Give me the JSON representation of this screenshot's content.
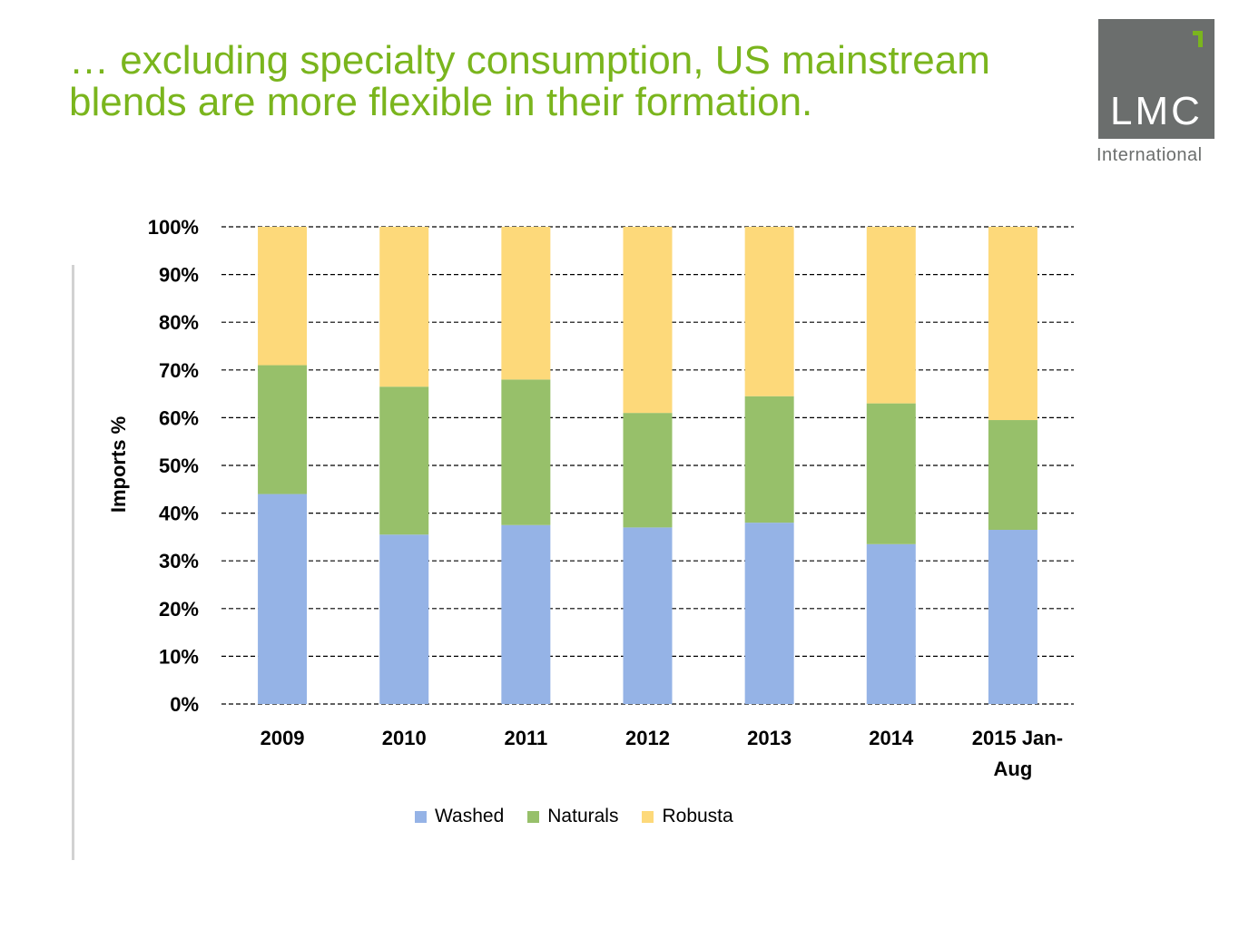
{
  "slide": {
    "title_line1": "… excluding specialty consumption, US mainstream",
    "title_line2": "blends are more flexible in their formation."
  },
  "logo": {
    "text": "LMC",
    "subtext": "International",
    "color": "#6b6e6d",
    "accent": "#7ab51d"
  },
  "chart_data": {
    "type": "bar",
    "stacked": true,
    "categories": [
      "2009",
      "2010",
      "2011",
      "2012",
      "2013",
      "2014",
      "2015 Jan-Aug"
    ],
    "category_lines": [
      [
        "2009"
      ],
      [
        "2010"
      ],
      [
        "2011"
      ],
      [
        "2012"
      ],
      [
        "2013"
      ],
      [
        "2014"
      ],
      [
        "2015 Jan-",
        "Aug"
      ]
    ],
    "series": [
      {
        "name": "Washed",
        "color": "#95b3e6",
        "values": [
          44,
          35.5,
          37.5,
          37,
          38,
          33.5,
          36.5
        ]
      },
      {
        "name": "Naturals",
        "color": "#97c06a",
        "values": [
          27,
          31,
          30.5,
          24,
          26.5,
          29.5,
          23
        ]
      },
      {
        "name": "Robusta",
        "color": "#fdd97a",
        "values": [
          29,
          33.5,
          32,
          39,
          35.5,
          37,
          40.5
        ]
      }
    ],
    "ylabel": "Imports %",
    "ylim": [
      0,
      100
    ],
    "yticks": [
      "0%",
      "10%",
      "20%",
      "30%",
      "40%",
      "50%",
      "60%",
      "70%",
      "80%",
      "90%",
      "100%"
    ],
    "grid": true,
    "grid_style": "dashed",
    "legend_position": "bottom"
  }
}
